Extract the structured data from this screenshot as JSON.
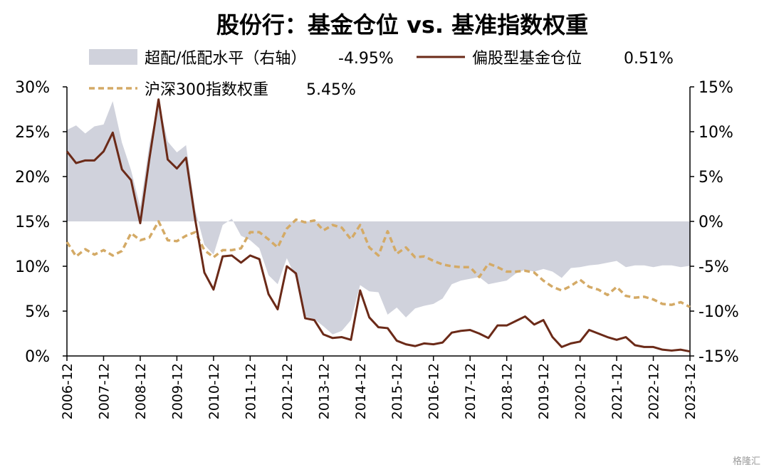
{
  "chart_data": {
    "type": "line",
    "title": "股份行：基金仓位 vs. 基准指数权重",
    "xlabel": "",
    "ylabel": "",
    "ylim": [
      0,
      30
    ],
    "y2lim": [
      -15,
      15
    ],
    "y_ticks": [
      "30%",
      "25%",
      "20%",
      "15%",
      "10%",
      "5%",
      "0%"
    ],
    "y2_ticks": [
      "15%",
      "10%",
      "5%",
      "0%",
      "-5%",
      "-10%",
      "-15%"
    ],
    "x_ticks": [
      "2006-12",
      "2007-12",
      "2008-12",
      "2009-12",
      "2010-12",
      "2011-12",
      "2012-12",
      "2013-12",
      "2014-12",
      "2015-12",
      "2016-12",
      "2017-12",
      "2018-12",
      "2019-12",
      "2020-12",
      "2021-12",
      "2022-12",
      "2023-12"
    ],
    "x_period_start": "2006-12",
    "x_step": "quarter",
    "colors": {
      "area": "#d0d2dc",
      "fund": "#6b2a18",
      "index": "#d4aa66"
    },
    "legend": {
      "area_label": "超配/低配水平（右轴）",
      "area_value": "-4.95%",
      "fund_label": "偏股型基金仓位",
      "fund_value": "0.51%",
      "index_label": "沪深300指数权重",
      "index_value": "5.45%"
    },
    "series": [
      {
        "name": "偏股型基金仓位",
        "axis": "left",
        "style": "solid",
        "values": [
          22.8,
          21.5,
          21.8,
          21.8,
          22.8,
          24.9,
          20.8,
          19.6,
          14.8,
          22.0,
          28.6,
          21.9,
          20.9,
          22.1,
          15.2,
          9.3,
          7.4,
          11.1,
          11.2,
          10.4,
          11.2,
          10.8,
          6.9,
          5.2,
          10.0,
          9.2,
          4.2,
          4.0,
          2.4,
          2.0,
          2.1,
          1.8,
          7.3,
          4.3,
          3.2,
          3.1,
          1.7,
          1.3,
          1.1,
          1.4,
          1.3,
          1.5,
          2.6,
          2.8,
          2.9,
          2.5,
          2.0,
          3.4,
          3.4,
          3.9,
          4.4,
          3.5,
          4.0,
          2.1,
          1.0,
          1.4,
          1.6,
          2.9,
          2.5,
          2.1,
          1.8,
          2.1,
          1.2,
          1.0,
          1.0,
          0.7,
          0.6,
          0.7,
          0.5
        ]
      },
      {
        "name": "沪深300指数权重",
        "axis": "left",
        "style": "dashed",
        "values": [
          12.7,
          11.1,
          11.9,
          11.3,
          11.8,
          11.2,
          11.7,
          13.7,
          12.9,
          13.2,
          15.0,
          12.9,
          12.8,
          13.4,
          13.8,
          11.8,
          11.0,
          11.8,
          11.8,
          12.0,
          13.8,
          13.8,
          13.0,
          12.1,
          14.2,
          15.2,
          14.9,
          15.1,
          14.0,
          14.6,
          14.3,
          13.0,
          14.6,
          12.1,
          11.2,
          13.9,
          11.4,
          12.1,
          11.0,
          11.1,
          10.6,
          10.2,
          10.0,
          9.9,
          9.9,
          8.8,
          10.3,
          9.9,
          9.4,
          9.4,
          9.5,
          9.3,
          8.4,
          7.7,
          7.3,
          7.8,
          8.5,
          7.7,
          7.4,
          6.8,
          7.7,
          6.7,
          6.5,
          6.6,
          6.3,
          5.8,
          5.7,
          6.0,
          5.45
        ]
      },
      {
        "name": "超配/低配水平（右轴）",
        "axis": "right",
        "style": "area",
        "values": [
          10.2,
          10.7,
          9.8,
          10.6,
          10.8,
          13.4,
          8.8,
          5.7,
          1.6,
          8.6,
          13.4,
          8.9,
          7.7,
          8.5,
          1.3,
          -2.6,
          -3.7,
          -0.4,
          0.3,
          -1.6,
          -2.1,
          -3.0,
          -6.0,
          -7.0,
          -4.1,
          -6.3,
          -10.6,
          -10.9,
          -11.7,
          -12.6,
          -12.2,
          -11.0,
          -7.1,
          -7.8,
          -7.9,
          -10.4,
          -9.6,
          -10.7,
          -9.7,
          -9.4,
          -9.2,
          -8.6,
          -7.0,
          -6.6,
          -6.4,
          -6.2,
          -7.0,
          -6.8,
          -6.6,
          -5.8,
          -5.4,
          -5.6,
          -5.3,
          -5.6,
          -6.3,
          -5.2,
          -5.1,
          -4.9,
          -4.8,
          -4.6,
          -4.4,
          -5.1,
          -4.9,
          -4.9,
          -5.1,
          -4.9,
          -4.9,
          -5.1,
          -4.95
        ]
      }
    ]
  },
  "watermark": "格隆汇"
}
